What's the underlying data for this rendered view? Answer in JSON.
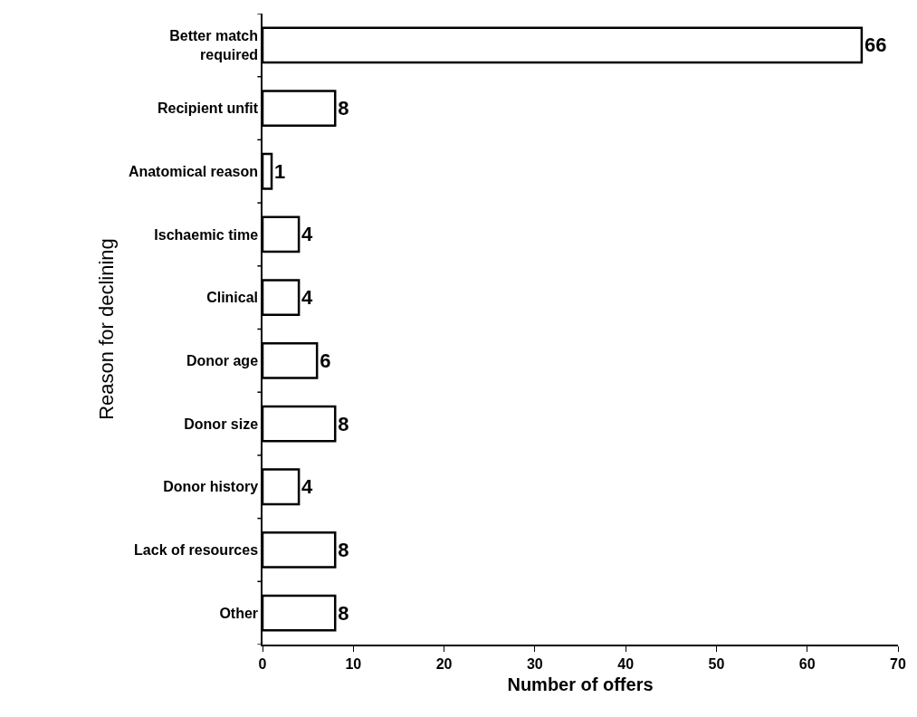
{
  "chart_data": {
    "type": "bar",
    "orientation": "horizontal",
    "xlabel": "Number of offers",
    "ylabel": "Reason for declining",
    "categories": [
      "Better match\nrequired",
      "Recipient unfit",
      "Anatomical reason",
      "Ischaemic time",
      "Clinical",
      "Donor age",
      "Donor size",
      "Donor history",
      "Lack of resources",
      "Other"
    ],
    "values": [
      66,
      8,
      1,
      4,
      4,
      6,
      8,
      4,
      8,
      8
    ],
    "color": "#ffffff",
    "xlim": [
      0,
      70
    ],
    "xticks": [
      0,
      10,
      20,
      30,
      40,
      50,
      60,
      70
    ],
    "data_labels": true
  }
}
